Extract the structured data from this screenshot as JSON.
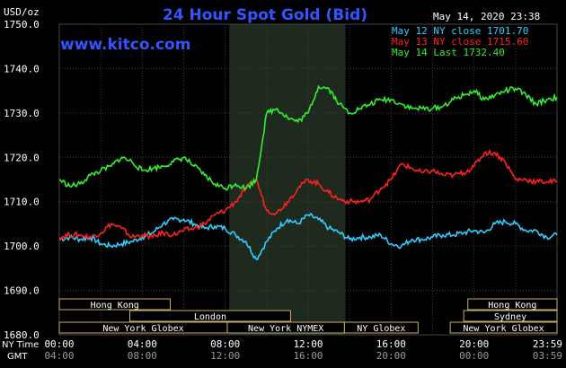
{
  "chart_data": {
    "type": "line",
    "title": "24 Hour Spot Gold (Bid)",
    "timestamp": "May 14, 2020 23:38",
    "watermark": "www.kitco.com",
    "ylabel": "USD/oz",
    "ylim": [
      1680,
      1750
    ],
    "y_ticks": [
      1680,
      1690,
      1700,
      1710,
      1720,
      1730,
      1740,
      1750
    ],
    "y_tick_labels": [
      "1680.0",
      "1690.0",
      "1700.0",
      "1710.0",
      "1720.0",
      "1730.0",
      "1740.0",
      "1750.0"
    ],
    "xlim_hours": [
      0,
      24
    ],
    "x_ticks_ny": [
      "00:00",
      "04:00",
      "08:00",
      "12:00",
      "16:00",
      "20:00",
      "23:59"
    ],
    "x_ticks_gmt": [
      "04:00",
      "08:00",
      "12:00",
      "16:00",
      "20:00",
      "00:00",
      "03:59"
    ],
    "x_tick_hours": [
      0,
      4,
      8,
      12,
      16,
      20,
      24
    ],
    "x_row_labels": {
      "ny": "NY Time",
      "gmt": "GMT"
    },
    "highlight_hours": [
      8.2,
      13.8
    ],
    "grid": true,
    "legend_position": "top-right",
    "series": [
      {
        "name": "May 12 NY close 1701.70",
        "color": "#33ccff",
        "x": [
          0,
          0.5,
          1,
          1.5,
          2,
          2.5,
          3,
          3.5,
          4,
          4.5,
          5,
          5.5,
          6,
          6.5,
          7,
          7.5,
          8,
          8.5,
          9,
          9.5,
          10,
          10.5,
          11,
          11.5,
          12,
          12.5,
          13,
          13.5,
          14,
          14.5,
          15,
          15.5,
          16,
          16.5,
          17,
          17.5,
          18,
          18.5,
          19,
          19.5,
          20,
          20.5,
          21,
          21.5,
          22,
          22.5,
          23,
          23.5,
          24
        ],
        "values": [
          1701.5,
          1702,
          1701.5,
          1702,
          1700.5,
          1700,
          1700.5,
          1701,
          1702,
          1703,
          1705,
          1706,
          1706,
          1705,
          1704,
          1704.5,
          1704,
          1702.5,
          1701,
          1697,
          1701,
          1704,
          1706,
          1705,
          1707,
          1706,
          1704,
          1703,
          1701.5,
          1702,
          1702,
          1702.5,
          1700.5,
          1700,
          1701.5,
          1701.5,
          1702,
          1702.5,
          1702.5,
          1703,
          1703.5,
          1703,
          1705,
          1705.5,
          1705,
          1703.5,
          1703.5,
          1702,
          1702.5
        ]
      },
      {
        "name": "May 13 NY close 1715.60",
        "color": "#ff2020",
        "x": [
          0,
          0.5,
          1,
          1.5,
          2,
          2.5,
          3,
          3.5,
          4,
          4.5,
          5,
          5.5,
          6,
          6.5,
          7,
          7.5,
          8,
          8.5,
          9,
          9.5,
          10,
          10.5,
          11,
          11.5,
          12,
          12.5,
          13,
          13.5,
          14,
          14.5,
          15,
          15.5,
          16,
          16.5,
          17,
          17.5,
          18,
          18.5,
          19,
          19.5,
          20,
          20.5,
          21,
          21.5,
          22,
          22.5,
          23,
          23.5,
          24
        ],
        "values": [
          1702,
          1702.5,
          1702.5,
          1702,
          1703,
          1705,
          1704,
          1702,
          1702.5,
          1702,
          1703,
          1702.5,
          1703.5,
          1704,
          1705,
          1707,
          1708,
          1710,
          1713,
          1715,
          1708,
          1707.5,
          1710,
          1713,
          1715,
          1714,
          1712,
          1710.5,
          1710,
          1710,
          1710.5,
          1713,
          1715,
          1718.5,
          1717.5,
          1716.5,
          1717,
          1716,
          1716,
          1716.5,
          1718,
          1721,
          1721,
          1719,
          1715,
          1715,
          1714.5,
          1714.5,
          1714.5
        ]
      },
      {
        "name": "May 14 Last 1732.40",
        "color": "#33ee33",
        "x": [
          0,
          0.5,
          1,
          1.5,
          2,
          2.5,
          3,
          3.5,
          4,
          4.5,
          5,
          5.5,
          6,
          6.5,
          7,
          7.5,
          8,
          8.5,
          9,
          9.5,
          10,
          10.5,
          11,
          11.5,
          12,
          12.5,
          13,
          13.5,
          14,
          14.5,
          15,
          15.5,
          16,
          16.5,
          17,
          17.5,
          18,
          18.5,
          19,
          19.5,
          20,
          20.5,
          21,
          21.5,
          22,
          22.5,
          23,
          23.5,
          24
        ],
        "values": [
          1715,
          1713.5,
          1714,
          1716,
          1717,
          1718,
          1720,
          1719,
          1717,
          1717.5,
          1718,
          1719,
          1720,
          1718,
          1716,
          1714,
          1713,
          1714,
          1713,
          1715,
          1730,
          1731,
          1729,
          1728,
          1730,
          1736,
          1735.5,
          1732,
          1730,
          1731,
          1732,
          1733,
          1733,
          1732,
          1731,
          1731,
          1731,
          1731.5,
          1733,
          1734,
          1735,
          1733,
          1734,
          1735,
          1735.5,
          1734,
          1732,
          1733,
          1733.5
        ]
      }
    ]
  },
  "sessions": [
    {
      "label": "Hong Kong",
      "row": 0,
      "start": 0,
      "end": 5.35
    },
    {
      "label": "Hong Kong",
      "row": 0,
      "start": 19.7,
      "end": 24
    },
    {
      "label": "London",
      "row": 1,
      "start": 3.4,
      "end": 11.15
    },
    {
      "label": "Sydney",
      "row": 1,
      "start": 19.5,
      "end": 24
    },
    {
      "label": "New York Globex",
      "row": 2,
      "start": 0,
      "end": 8.1
    },
    {
      "label": "New York NYMEX",
      "row": 2,
      "start": 8.1,
      "end": 13.75
    },
    {
      "label": "NY Globex",
      "row": 2,
      "start": 13.75,
      "end": 17.3
    },
    {
      "label": "New York Globex",
      "row": 2,
      "start": 18.85,
      "end": 24
    }
  ]
}
